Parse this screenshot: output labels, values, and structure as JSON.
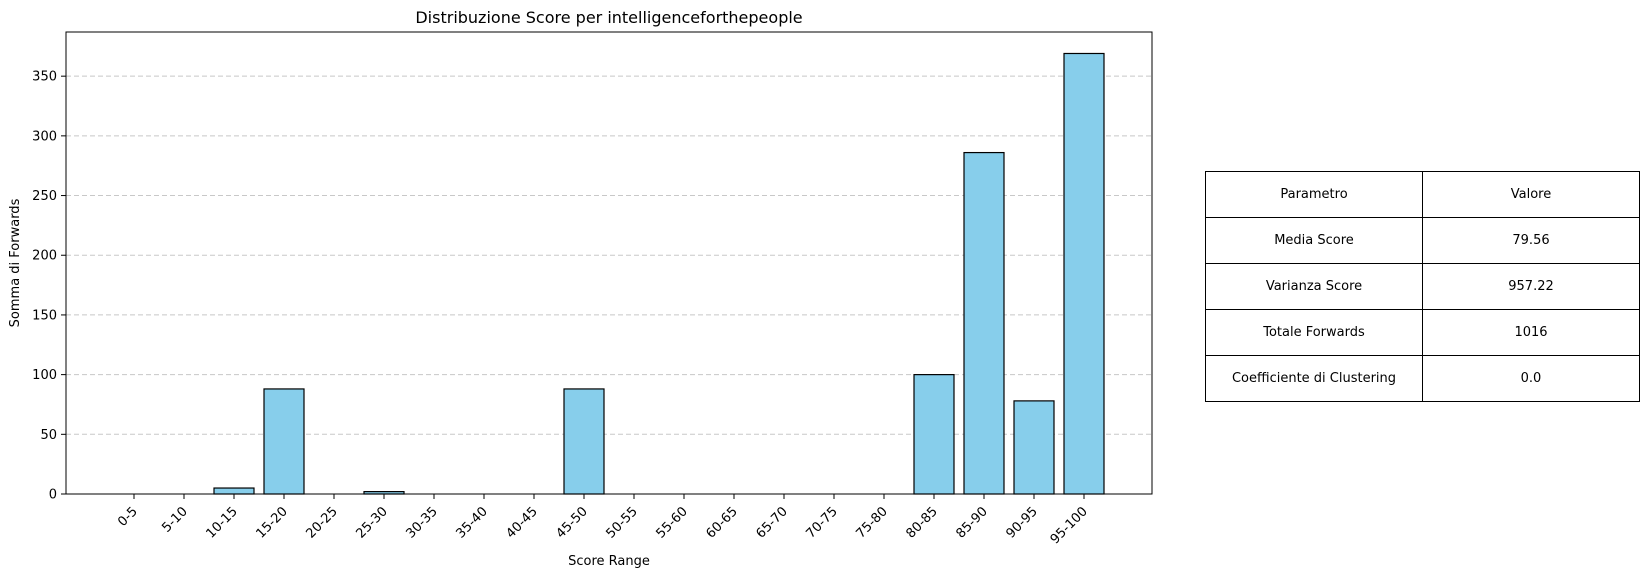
{
  "chart_data": {
    "type": "bar",
    "title": "Distribuzione Score per intelligenceforthepeople",
    "xlabel": "Score Range",
    "ylabel": "Somma di Forwards",
    "categories": [
      "0-5",
      "5-10",
      "10-15",
      "15-20",
      "20-25",
      "25-30",
      "30-35",
      "35-40",
      "40-45",
      "45-50",
      "50-55",
      "55-60",
      "60-65",
      "65-70",
      "70-75",
      "75-80",
      "80-85",
      "85-90",
      "90-95",
      "95-100"
    ],
    "values": [
      0,
      0,
      5,
      88,
      0,
      2,
      0,
      0,
      0,
      88,
      0,
      0,
      0,
      0,
      0,
      0,
      100,
      286,
      78,
      369
    ],
    "ylim": [
      0,
      387
    ],
    "yticks": [
      0,
      50,
      100,
      150,
      200,
      250,
      300,
      350
    ],
    "grid": "y-dashed",
    "bar_color": "#87ceeb",
    "edge_color": "#000000"
  },
  "table": {
    "header": [
      "Parametro",
      "Valore"
    ],
    "rows": [
      [
        "Media Score",
        "79.56"
      ],
      [
        "Varianza Score",
        "957.22"
      ],
      [
        "Totale Forwards",
        "1016"
      ],
      [
        "Coefficiente di Clustering",
        "0.0"
      ]
    ]
  }
}
